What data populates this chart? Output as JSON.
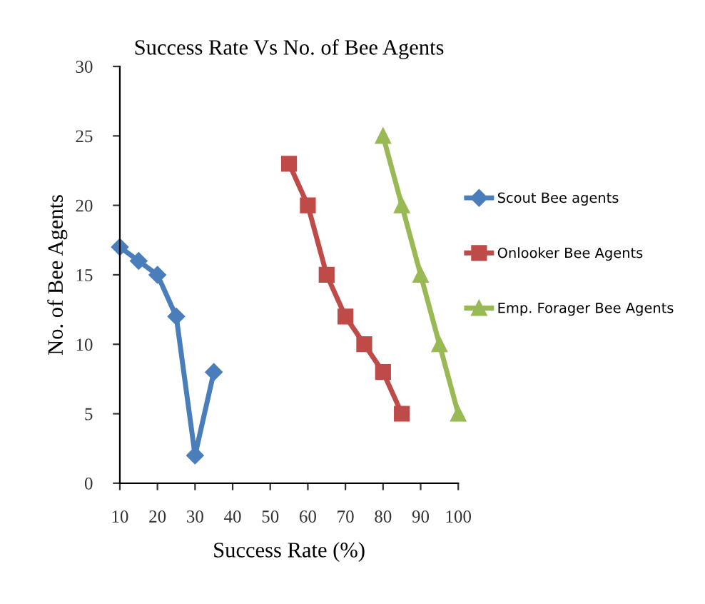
{
  "chart_data": {
    "type": "line",
    "title": "Success Rate Vs No. of Bee Agents",
    "xlabel": "Success Rate (%)",
    "ylabel": "No. of Bee Agents",
    "series": [
      {
        "name": "Scout Bee agents",
        "color": "#4a7ebb",
        "marker": "diamond",
        "x": [
          10,
          15,
          20,
          25,
          30,
          35
        ],
        "values": [
          17,
          16,
          15,
          12,
          2,
          8
        ]
      },
      {
        "name": "Onlooker Bee Agents",
        "color": "#be4b48",
        "marker": "square",
        "x": [
          55,
          60,
          65,
          70,
          75,
          80,
          85
        ],
        "values": [
          23,
          20,
          15,
          12,
          10,
          8,
          5
        ]
      },
      {
        "name": "Emp. Forager Bee Agents",
        "color": "#98b954",
        "marker": "triangle",
        "x": [
          80,
          85,
          90,
          95,
          100
        ],
        "values": [
          25,
          20,
          15,
          10,
          5
        ]
      }
    ],
    "xlim": [
      10,
      100
    ],
    "xticks": [
      10,
      20,
      30,
      40,
      50,
      60,
      70,
      80,
      90,
      100
    ],
    "ylim": [
      0,
      30
    ],
    "yticks": [
      0,
      5,
      10,
      15,
      20,
      25,
      30
    ],
    "grid": false,
    "legend": "right",
    "line_style": "solid"
  }
}
